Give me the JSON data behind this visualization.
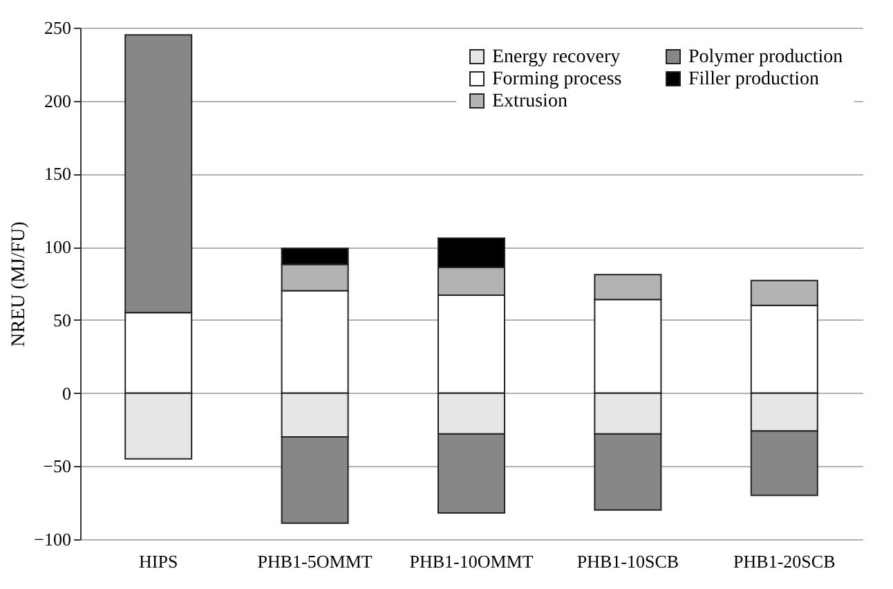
{
  "chart_data": {
    "type": "bar",
    "stacked": true,
    "ylabel": "NREU (MJ/FU)",
    "categories": [
      "HIPS",
      "PHB1-5OMMT",
      "PHB1-10OMMT",
      "PHB1-10SCB",
      "PHB1-20SCB"
    ],
    "series": [
      {
        "name": "Energy recovery",
        "color": "#e6e6e6",
        "values": [
          -45,
          -30,
          -28,
          -28,
          -26
        ]
      },
      {
        "name": "Forming process",
        "color": "#ffffff",
        "values": [
          55,
          70,
          67,
          64,
          60
        ]
      },
      {
        "name": "Extrusion",
        "color": "#b3b3b3",
        "values": [
          null,
          18,
          19,
          17,
          17
        ]
      },
      {
        "name": "Polymer production",
        "color": "#878787",
        "values": [
          190,
          -59,
          -54,
          -52,
          -44
        ]
      },
      {
        "name": "Filler production",
        "color": "#000000",
        "values": [
          null,
          11,
          20,
          null,
          null
        ]
      }
    ],
    "ylim": [
      -100,
      250
    ],
    "yticks": [
      -100,
      -50,
      0,
      50,
      100,
      150,
      200,
      250
    ],
    "grid": "y",
    "legend": "top right"
  }
}
